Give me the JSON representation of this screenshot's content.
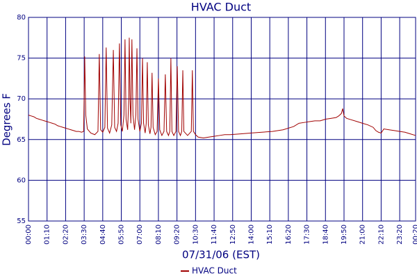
{
  "chart_data": {
    "type": "line",
    "title": "HVAC Duct",
    "xlabel": "07/31/06 (EST)",
    "ylabel": "Degrees F",
    "x": [
      0,
      10,
      20,
      30,
      40,
      50,
      60,
      70,
      80,
      90,
      100,
      110,
      120,
      130,
      140,
      150,
      160,
      170,
      180,
      190,
      200,
      208,
      212,
      216,
      222,
      235,
      250,
      262,
      267,
      272,
      280,
      288,
      293,
      298,
      306,
      314,
      320,
      325,
      332,
      338,
      343,
      348,
      354,
      360,
      364,
      368,
      374,
      378,
      380,
      383,
      386,
      390,
      394,
      400,
      405,
      409,
      413,
      420,
      426,
      430,
      434,
      440,
      444,
      448,
      452,
      458,
      462,
      466,
      470,
      478,
      485,
      490,
      495,
      503,
      511,
      516,
      521,
      528,
      533,
      537,
      541,
      548,
      556,
      561,
      566,
      573,
      578,
      582,
      586,
      600,
      614,
      618,
      622,
      630,
      640,
      660,
      680,
      700,
      720,
      740,
      760,
      800,
      840,
      880,
      920,
      960,
      1000,
      1020,
      1040,
      1060,
      1080,
      1100,
      1120,
      1140,
      1160,
      1170,
      1180,
      1185,
      1190,
      1200,
      1220,
      1240,
      1260,
      1280,
      1300,
      1310,
      1320,
      1330,
      1340,
      1360,
      1380,
      1400,
      1420,
      1440,
      1460
    ],
    "series": [
      {
        "name": "HVAC Duct",
        "color": "#a00000",
        "values": [
          68,
          67.9,
          67.8,
          67.6,
          67.5,
          67.4,
          67.3,
          67.2,
          67.1,
          67,
          66.9,
          66.7,
          66.6,
          66.5,
          66.4,
          66.3,
          66.2,
          66.1,
          66,
          66,
          65.9,
          66,
          75.2,
          68,
          66.3,
          65.8,
          65.6,
          66,
          75.5,
          66.2,
          65.9,
          66.5,
          76.3,
          66.4,
          65.8,
          66.8,
          76,
          66.5,
          66,
          67,
          76.8,
          66.8,
          66,
          68,
          77.3,
          67.5,
          66.2,
          70,
          77.5,
          70,
          67,
          77.3,
          68,
          66.2,
          68,
          76.2,
          67.5,
          66,
          67,
          75,
          67,
          65.8,
          67,
          74.5,
          66.8,
          65.7,
          66.5,
          73.2,
          66.5,
          65.6,
          66,
          72.5,
          66.2,
          65.5,
          66,
          73,
          66,
          65.5,
          66,
          75,
          66,
          65.5,
          66,
          74,
          66,
          65.5,
          66,
          73.5,
          66,
          65.5,
          66,
          73.5,
          66,
          65.6,
          65.3,
          65.2,
          65.3,
          65.4,
          65.5,
          65.6,
          65.6,
          65.7,
          65.8,
          65.9,
          66,
          66.2,
          66.6,
          67,
          67.1,
          67.2,
          67.3,
          67.3,
          67.5,
          67.6,
          67.7,
          67.9,
          68.2,
          68.8,
          67.9,
          67.6,
          67.4,
          67.2,
          67,
          66.8,
          66.5,
          66.1,
          65.9,
          65.8,
          66.3,
          66.2,
          66.1,
          66,
          65.9,
          65.7,
          65.5
        ]
      }
    ],
    "xlim": [
      0,
      1460
    ],
    "xticks": [
      {
        "value": 0,
        "label": "00:00"
      },
      {
        "value": 70,
        "label": "01:10"
      },
      {
        "value": 140,
        "label": "02:20"
      },
      {
        "value": 210,
        "label": "03:30"
      },
      {
        "value": 280,
        "label": "04:40"
      },
      {
        "value": 350,
        "label": "05:50"
      },
      {
        "value": 420,
        "label": "07:00"
      },
      {
        "value": 490,
        "label": "08:10"
      },
      {
        "value": 560,
        "label": "09:20"
      },
      {
        "value": 630,
        "label": "10:30"
      },
      {
        "value": 700,
        "label": "11:40"
      },
      {
        "value": 770,
        "label": "12:50"
      },
      {
        "value": 840,
        "label": "14:00"
      },
      {
        "value": 910,
        "label": "15:10"
      },
      {
        "value": 980,
        "label": "16:20"
      },
      {
        "value": 1050,
        "label": "17:30"
      },
      {
        "value": 1120,
        "label": "18:40"
      },
      {
        "value": 1190,
        "label": "19:50"
      },
      {
        "value": 1260,
        "label": "21:00"
      },
      {
        "value": 1330,
        "label": "22:10"
      },
      {
        "value": 1400,
        "label": "23:20"
      },
      {
        "value": 1460,
        "label": "00:20"
      }
    ],
    "ylim": [
      55,
      80
    ],
    "yticks": [
      55,
      60,
      65,
      70,
      75,
      80
    ],
    "grid": true
  }
}
